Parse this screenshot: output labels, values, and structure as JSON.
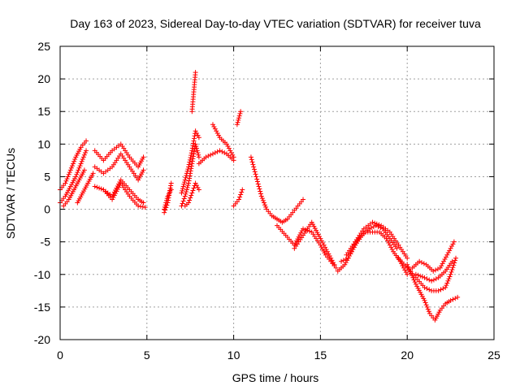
{
  "chart_data": {
    "type": "scatter",
    "title": "Day 163 of 2023, Sidereal Day-to-day VTEC variation (SDTVAR) for receiver tuva",
    "xlabel": "GPS time / hours",
    "ylabel": "SDTVAR / TECUs",
    "xlim": [
      0,
      25
    ],
    "ylim": [
      -20,
      25
    ],
    "x_ticks": [
      0,
      5,
      10,
      15,
      20,
      25
    ],
    "y_ticks": [
      -20,
      -15,
      -10,
      -5,
      0,
      5,
      10,
      15,
      20,
      25
    ],
    "x_tick_labels": [
      "0",
      "5",
      "10",
      "15",
      "20",
      "25"
    ],
    "y_tick_labels": [
      "-20",
      "-15",
      "-10",
      "-5",
      "0",
      "5",
      "10",
      "15",
      "20",
      "25"
    ],
    "grid": true,
    "marker": "+",
    "color": "#ff0000",
    "series": [
      {
        "name": "SDTVAR",
        "tracks": [
          {
            "x": [
              0.0,
              0.3,
              0.6,
              0.9,
              1.2,
              1.5
            ],
            "y": [
              3.0,
              4.0,
              6.0,
              8.0,
              9.5,
              10.5
            ]
          },
          {
            "x": [
              0.0,
              0.3,
              0.6,
              0.9,
              1.2,
              1.5
            ],
            "y": [
              1.0,
              2.0,
              3.5,
              5.0,
              7.0,
              9.0
            ]
          },
          {
            "x": [
              0.2,
              0.5,
              0.8,
              1.1,
              1.4
            ],
            "y": [
              0.5,
              1.5,
              3.0,
              4.5,
              6.0
            ]
          },
          {
            "x": [
              1.0,
              1.3,
              1.6,
              1.9
            ],
            "y": [
              1.0,
              2.5,
              4.0,
              5.5
            ]
          },
          {
            "x": [
              2.0,
              2.5,
              3.0,
              3.5,
              4.0,
              4.5,
              4.8
            ],
            "y": [
              9.0,
              7.5,
              9.0,
              10.0,
              8.0,
              6.5,
              8.0
            ]
          },
          {
            "x": [
              2.0,
              2.5,
              3.0,
              3.5,
              4.0,
              4.5,
              4.8
            ],
            "y": [
              6.5,
              5.5,
              6.5,
              8.5,
              6.5,
              4.5,
              6.0
            ]
          },
          {
            "x": [
              2.0,
              2.5,
              3.0,
              3.5,
              4.0,
              4.5,
              4.8
            ],
            "y": [
              3.5,
              3.0,
              2.0,
              4.5,
              3.0,
              1.5,
              1.0
            ]
          },
          {
            "x": [
              2.5,
              3.0,
              3.5,
              4.0,
              4.5,
              4.9
            ],
            "y": [
              3.0,
              1.5,
              4.0,
              2.0,
              0.5,
              0.3
            ]
          },
          {
            "x": [
              6.0,
              6.2,
              6.4
            ],
            "y": [
              -0.5,
              1.0,
              4.0
            ]
          },
          {
            "x": [
              6.0,
              6.2,
              6.4
            ],
            "y": [
              0.0,
              2.0,
              3.0
            ]
          },
          {
            "x": [
              7.0,
              7.2,
              7.4,
              7.6,
              7.8,
              8.0
            ],
            "y": [
              0.5,
              2.0,
              4.0,
              7.0,
              10.0,
              8.0
            ]
          },
          {
            "x": [
              7.0,
              7.2,
              7.4,
              7.6,
              7.8,
              8.0
            ],
            "y": [
              2.5,
              4.5,
              6.5,
              9.0,
              12.0,
              11.0
            ]
          },
          {
            "x": [
              7.2,
              7.4,
              7.6,
              7.8,
              8.0
            ],
            "y": [
              0.5,
              1.0,
              2.5,
              4.0,
              3.0
            ]
          },
          {
            "x": [
              7.6,
              7.8
            ],
            "y": [
              15.0,
              21.0
            ]
          },
          {
            "x": [
              8.0,
              8.4,
              8.8,
              9.2,
              9.6,
              10.0
            ],
            "y": [
              7.0,
              8.0,
              8.5,
              9.0,
              8.5,
              7.5
            ]
          },
          {
            "x": [
              8.8,
              9.2,
              9.6,
              10.0
            ],
            "y": [
              13.0,
              11.0,
              10.0,
              8.0
            ]
          },
          {
            "x": [
              10.0,
              10.3,
              10.5
            ],
            "y": [
              0.5,
              1.5,
              3.0
            ]
          },
          {
            "x": [
              10.2,
              10.4
            ],
            "y": [
              13.0,
              15.0
            ]
          },
          {
            "x": [
              11.0,
              11.3,
              11.6,
              11.9,
              12.2,
              12.5,
              12.8,
              13.1,
              13.4,
              13.7,
              14.0
            ],
            "y": [
              8.0,
              5.0,
              2.0,
              0.0,
              -1.0,
              -1.5,
              -2.0,
              -1.5,
              -0.5,
              0.5,
              1.5
            ]
          },
          {
            "x": [
              12.5,
              13.0,
              13.5,
              14.0,
              14.5,
              15.0,
              15.3,
              15.6,
              15.9
            ],
            "y": [
              -2.5,
              -4.0,
              -5.5,
              -3.0,
              -3.5,
              -5.5,
              -7.0,
              -8.0,
              -9.0
            ]
          },
          {
            "x": [
              13.5,
              14.0,
              14.5,
              15.0,
              15.4,
              15.8
            ],
            "y": [
              -6.0,
              -4.0,
              -2.0,
              -4.5,
              -6.5,
              -8.5
            ]
          },
          {
            "x": [
              16.0,
              16.4,
              16.8,
              17.2,
              17.6,
              18.0,
              18.4,
              18.8,
              19.2,
              19.6,
              20.0
            ],
            "y": [
              -9.5,
              -8.5,
              -6.5,
              -4.5,
              -3.5,
              -3.5,
              -3.5,
              -4.5,
              -6.5,
              -8.0,
              -10.0
            ]
          },
          {
            "x": [
              16.2,
              16.6,
              17.0,
              17.4,
              17.8,
              18.2,
              18.6,
              19.0,
              19.4
            ],
            "y": [
              -8.0,
              -7.5,
              -5.5,
              -4.0,
              -3.0,
              -2.5,
              -3.0,
              -4.5,
              -6.0
            ]
          },
          {
            "x": [
              16.5,
              17.0,
              17.5,
              18.0,
              18.5,
              19.0,
              19.5,
              20.0
            ],
            "y": [
              -7.0,
              -5.0,
              -3.0,
              -2.0,
              -2.5,
              -3.5,
              -5.5,
              -7.5
            ]
          },
          {
            "x": [
              19.5,
              20.0,
              20.5,
              21.0,
              21.4,
              21.8,
              22.2,
              22.5,
              22.8
            ],
            "y": [
              -7.5,
              -9.0,
              -10.5,
              -12.0,
              -12.5,
              -12.5,
              -12.0,
              -10.0,
              -7.5
            ]
          },
          {
            "x": [
              20.0,
              20.5,
              21.0,
              21.3,
              21.6,
              21.9,
              22.2,
              22.5,
              22.9
            ],
            "y": [
              -8.5,
              -11.5,
              -14.0,
              -16.0,
              -17.0,
              -15.5,
              -14.5,
              -14.0,
              -13.5
            ]
          },
          {
            "x": [
              20.3,
              20.7,
              21.1,
              21.5,
              21.9,
              22.3,
              22.7
            ],
            "y": [
              -9.0,
              -8.0,
              -8.5,
              -9.5,
              -9.0,
              -7.0,
              -5.0
            ]
          },
          {
            "x": [
              20.5,
              21.0,
              21.4,
              21.8,
              22.2,
              22.6
            ],
            "y": [
              -10.0,
              -10.5,
              -11.0,
              -10.5,
              -9.5,
              -8.0
            ]
          }
        ]
      }
    ]
  }
}
